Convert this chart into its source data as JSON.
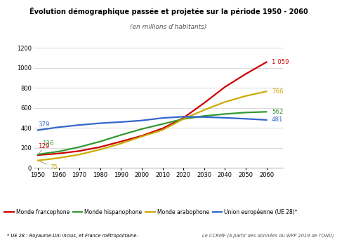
{
  "title": "Évolution démographique passée et projetée sur la période 1950 - 2060",
  "subtitle": "(en millions d'habitants)",
  "years": [
    1950,
    1960,
    1970,
    1980,
    1990,
    2000,
    2010,
    2020,
    2030,
    2040,
    2050,
    2060
  ],
  "francophone": [
    129,
    145,
    170,
    210,
    265,
    322,
    396,
    500,
    650,
    810,
    940,
    1059
  ],
  "hispanophone": [
    136,
    165,
    210,
    265,
    330,
    390,
    440,
    490,
    520,
    540,
    555,
    562
  ],
  "arabophone": [
    75,
    100,
    135,
    185,
    245,
    315,
    380,
    490,
    580,
    660,
    720,
    766
  ],
  "ue28": [
    379,
    408,
    430,
    448,
    460,
    475,
    500,
    513,
    510,
    502,
    492,
    481
  ],
  "francophone_color": "#cc0000",
  "hispanophone_color": "#339933",
  "arabophone_color": "#ccaa00",
  "ue28_color": "#3366cc",
  "ylim": [
    0,
    1200
  ],
  "yticks": [
    0,
    200,
    400,
    600,
    800,
    1000,
    1200
  ],
  "footnote_left": "* UE 28 : Royaume-Uni inclus, et France métropolitaine.",
  "footnote_right": "Le CCRMF (à partir des données du WPP 2019 de l'ONU)",
  "legend_entries": [
    "Monde francophone",
    "Monde hispanophone",
    "Monde arabophone",
    "Union européenne (UE 28)*"
  ],
  "label_start_francophone": "129",
  "label_start_hispanophone": "136",
  "label_start_arabophone": "75",
  "label_start_ue28": "379",
  "label_end_francophone": "1 059",
  "label_end_hispanophone": "562",
  "label_end_arabophone": "766",
  "label_end_ue28": "481"
}
